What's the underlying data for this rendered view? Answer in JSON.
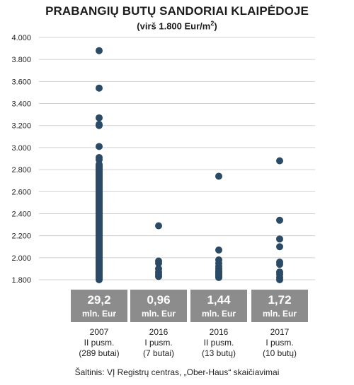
{
  "title": "PRABANGIŲ BUTŲ SANDORIAI KLAIPĖDOJE",
  "subtitle_main": "(virš 1.800 Eur/m",
  "subtitle_sup": "2",
  "subtitle_end": ")",
  "source": "Šaltinis: VĮ Registrų centras, „Ober-Haus“ skaičiavimai",
  "colors": {
    "dot": "#2b4a66",
    "box": "#8c8c8c",
    "gridline": "#d0d0d0"
  },
  "chart_data": {
    "type": "scatter",
    "ylim": [
      1800,
      4000
    ],
    "yticks": [
      "1.800",
      "2.000",
      "2.200",
      "2.400",
      "2.600",
      "2.800",
      "3.000",
      "3.200",
      "3.400",
      "3.600",
      "3.800",
      "4.000"
    ],
    "ytick_values": [
      1800,
      2000,
      2200,
      2400,
      2600,
      2800,
      3000,
      3200,
      3400,
      3600,
      3800,
      4000
    ],
    "groups": [
      {
        "label_lines": [
          "2007",
          "II pusm.",
          "(289 butai)"
        ],
        "total_value": "29,2",
        "total_unit": "mln. Eur",
        "dense_range": [
          1800,
          2850
        ],
        "points": [
          3880,
          3540,
          3270,
          3210,
          3200,
          3010,
          2910,
          2890,
          2820
        ]
      },
      {
        "label_lines": [
          "2016",
          "I pusm.",
          "(7 butai)"
        ],
        "total_value": "0,96",
        "total_unit": "mln. Eur",
        "points": [
          2290,
          1970,
          1950,
          1900,
          1870,
          1850,
          1830
        ]
      },
      {
        "label_lines": [
          "2016",
          "II pusm.",
          "(13 butų)"
        ],
        "total_value": "1,44",
        "total_unit": "mln. Eur",
        "points": [
          2740,
          2070,
          1980,
          1950,
          1920,
          1900,
          1880,
          1870,
          1860,
          1850,
          1840,
          1830,
          1820
        ]
      },
      {
        "label_lines": [
          "2017",
          "I pusm.",
          "(10 butų)"
        ],
        "total_value": "1,72",
        "total_unit": "mln. Eur",
        "points": [
          2880,
          2340,
          2170,
          2100,
          1960,
          1940,
          1870,
          1850,
          1820,
          1800
        ]
      }
    ]
  }
}
